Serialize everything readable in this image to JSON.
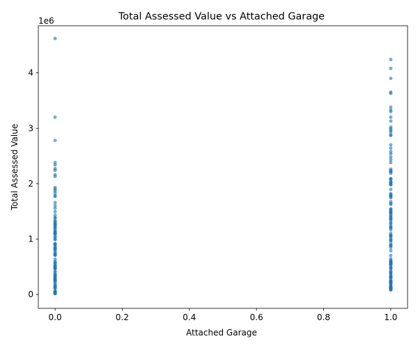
{
  "chart_data": {
    "type": "scatter",
    "title": "Total Assessed Value vs Attached Garage",
    "xlabel": "Attached Garage",
    "ylabel": "Total Assessed Value",
    "y_offset_text": "1e6",
    "xlim": [
      -0.05,
      1.05
    ],
    "ylim": [
      -250000,
      4850000
    ],
    "x_ticks": [
      0,
      0.2,
      0.4,
      0.6,
      0.8,
      1.0
    ],
    "x_tick_labels": [
      "0.0",
      "0.2",
      "0.4",
      "0.6",
      "0.8",
      "1.0"
    ],
    "y_ticks": [
      0,
      1000000,
      2000000,
      3000000,
      4000000
    ],
    "y_tick_labels": [
      "0",
      "1",
      "2",
      "3",
      "4"
    ],
    "grid": false,
    "legend": false,
    "marker_color": "#1f77b4",
    "marker_alpha": 0.6,
    "points": [
      {
        "x": 0,
        "y": 4620000
      },
      {
        "x": 0,
        "y": 3200000
      },
      {
        "x": 0,
        "y": 2780000
      },
      {
        "x": 0,
        "y": 2380000
      },
      {
        "x": 0,
        "y": 2340000
      },
      {
        "x": 0,
        "y": 2270000
      },
      {
        "x": 0,
        "y": 2240000
      },
      {
        "x": 0,
        "y": 2160000
      },
      {
        "x": 0,
        "y": 2130000
      },
      {
        "x": 0,
        "y": 1930000
      },
      {
        "x": 0,
        "y": 1900000
      },
      {
        "x": 0,
        "y": 1870000
      },
      {
        "x": 0,
        "y": 1830000
      },
      {
        "x": 0,
        "y": 1780000
      },
      {
        "x": 0,
        "y": 1770000
      },
      {
        "x": 1,
        "y": 4240000
      },
      {
        "x": 1,
        "y": 4080000
      },
      {
        "x": 1,
        "y": 3900000
      },
      {
        "x": 1,
        "y": 3650000
      },
      {
        "x": 1,
        "y": 3630000
      },
      {
        "x": 1,
        "y": 3380000
      },
      {
        "x": 1,
        "y": 3330000
      },
      {
        "x": 1,
        "y": 3300000
      },
      {
        "x": 1,
        "y": 3200000
      },
      {
        "x": 1,
        "y": 3130000
      },
      {
        "x": 1,
        "y": 3020000
      },
      {
        "x": 1,
        "y": 2990000
      },
      {
        "x": 1,
        "y": 2960000
      },
      {
        "x": 1,
        "y": 2930000
      },
      {
        "x": 1,
        "y": 2880000
      },
      {
        "x": 1,
        "y": 2870000
      },
      {
        "x": 1,
        "y": 2700000
      },
      {
        "x": 1,
        "y": 2640000
      },
      {
        "x": 1,
        "y": 2580000
      },
      {
        "x": 1,
        "y": 2540000
      },
      {
        "x": 1,
        "y": 2480000
      },
      {
        "x": 1,
        "y": 2430000
      },
      {
        "x": 1,
        "y": 2380000
      }
    ],
    "dense_ranges": [
      {
        "x": 0,
        "y_min": 10000,
        "y_max": 1680000,
        "count": 90
      },
      {
        "x": 1,
        "y_min": 80000,
        "y_max": 2330000,
        "count": 110
      }
    ]
  }
}
